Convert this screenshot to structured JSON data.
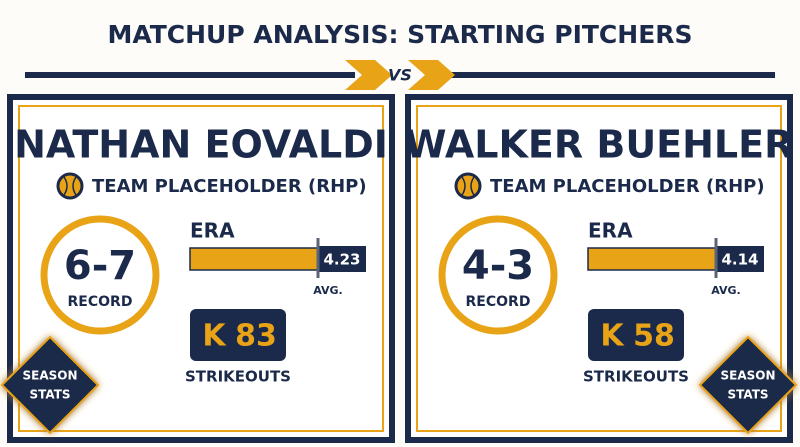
{
  "header": {
    "title": "MATCHUP ANALYSIS: STARTING PITCHERS",
    "vs": "VS"
  },
  "pitchers": [
    {
      "name": "NATHAN EOVALDI",
      "team": "TEAM PLACEHOLDER (RHP)",
      "record": "6-7",
      "record_label": "RECORD",
      "era_label": "ERA",
      "era": 4.23,
      "avg_label": "AVG.",
      "k_label": "K",
      "strikeouts": 83,
      "strikeouts_label": "STRIKEOUTS",
      "badge": [
        "SEASON",
        "STATS"
      ]
    },
    {
      "name": "WALKER BUEHLER",
      "team": "TEAM PLACEHOLDER (RHP)",
      "record": "4-3",
      "record_label": "RECORD",
      "era_label": "ERA",
      "era": 4.14,
      "avg_label": "AVG.",
      "k_label": "K",
      "strikeouts": 58,
      "strikeouts_label": "STRIKEOUTS",
      "badge": [
        "SEASON",
        "STATS"
      ]
    }
  ]
}
